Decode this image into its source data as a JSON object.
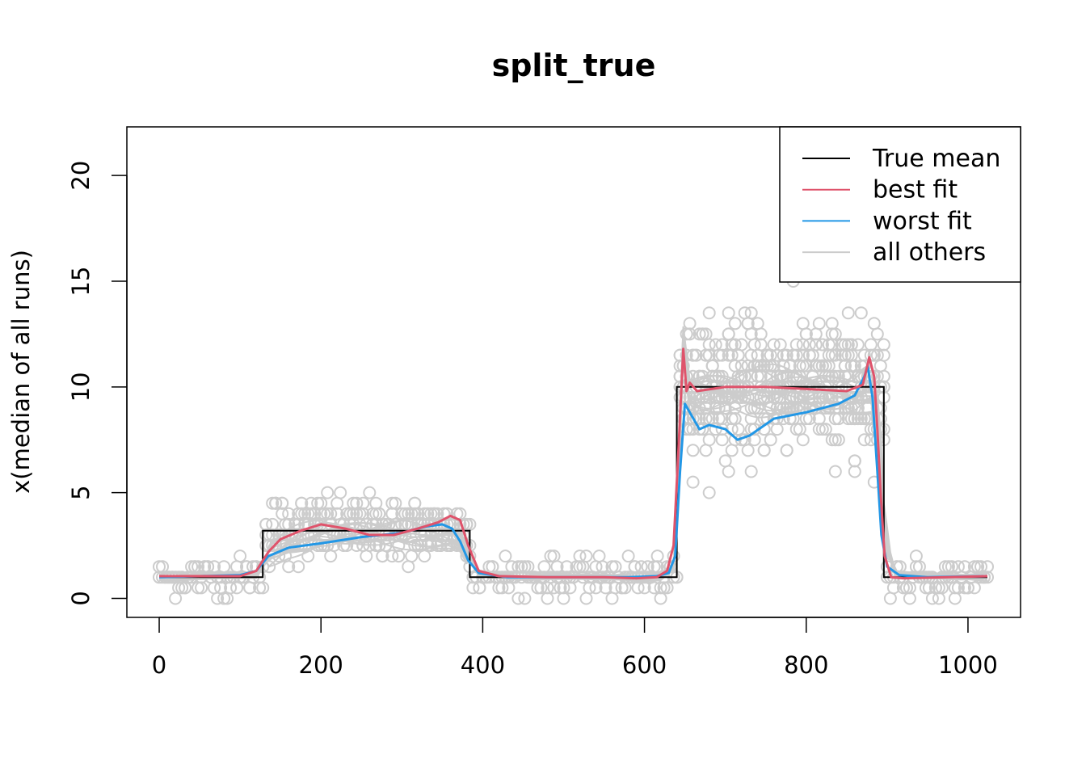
{
  "chart_data": {
    "type": "line",
    "title": "split_true",
    "xlabel": "",
    "ylabel": "x(median of all runs)",
    "xlim": [
      -40,
      1065
    ],
    "ylim": [
      -0.9,
      22.3
    ],
    "x_ticks": [
      0,
      200,
      400,
      600,
      800,
      1000
    ],
    "y_ticks": [
      0,
      5,
      10,
      15,
      20
    ],
    "grid": false,
    "legend_position": "top-right",
    "legend": [
      {
        "label": "True mean",
        "color": "#000000"
      },
      {
        "label": "best fit",
        "color": "#DF536B"
      },
      {
        "label": "worst fit",
        "color": "#2297E6"
      },
      {
        "label": "all others",
        "color": "#CCCCCC"
      }
    ],
    "series": [
      {
        "name": "True mean",
        "color": "#000000",
        "step": true,
        "x": [
          0,
          128,
          128,
          384,
          384,
          640,
          640,
          896,
          896,
          1024
        ],
        "y": [
          1,
          1,
          3.2,
          3.2,
          1,
          1,
          10,
          10,
          1,
          1
        ]
      },
      {
        "name": "best fit",
        "color": "#DF536B",
        "x": [
          0,
          50,
          100,
          120,
          135,
          150,
          175,
          200,
          230,
          260,
          290,
          320,
          345,
          360,
          372,
          382,
          395,
          420,
          480,
          550,
          590,
          615,
          628,
          636,
          642,
          648,
          652,
          656,
          665,
          700,
          750,
          800,
          850,
          870,
          878,
          884,
          888,
          892,
          897,
          905,
          920,
          1024
        ],
        "y": [
          1.05,
          1.05,
          1.05,
          1.3,
          2.2,
          2.8,
          3.2,
          3.5,
          3.3,
          3.0,
          3.0,
          3.3,
          3.6,
          3.9,
          3.7,
          2.5,
          1.3,
          1.05,
          1.0,
          1.0,
          0.95,
          1.0,
          1.3,
          2.5,
          7.0,
          11.8,
          9.8,
          10.2,
          9.8,
          10.0,
          10.0,
          9.9,
          9.8,
          10.1,
          11.4,
          10.5,
          8.0,
          5.0,
          2.0,
          1.0,
          0.95,
          1.05
        ]
      },
      {
        "name": "worst fit",
        "color": "#2297E6",
        "x": [
          0,
          50,
          100,
          120,
          135,
          160,
          200,
          250,
          300,
          330,
          350,
          362,
          372,
          382,
          395,
          430,
          500,
          580,
          615,
          630,
          638,
          644,
          650,
          656,
          668,
          680,
          700,
          715,
          730,
          760,
          800,
          840,
          860,
          872,
          876,
          882,
          888,
          893,
          900,
          915,
          950,
          1024
        ],
        "y": [
          1.0,
          1.05,
          1.1,
          1.3,
          2.0,
          2.4,
          2.6,
          2.9,
          3.1,
          3.4,
          3.5,
          3.3,
          2.7,
          1.8,
          1.2,
          1.0,
          1.0,
          1.0,
          1.05,
          1.2,
          2.0,
          6.0,
          9.2,
          8.8,
          8.0,
          8.2,
          8.0,
          7.5,
          7.7,
          8.5,
          8.8,
          9.2,
          9.6,
          10.5,
          11.0,
          9.5,
          6.0,
          3.0,
          1.5,
          1.1,
          1.0,
          1.05
        ]
      },
      {
        "name": "all others",
        "color": "#CCCCCC",
        "x": [
          0,
          120,
          135,
          160,
          200,
          260,
          320,
          370,
          382,
          395,
          430,
          620,
          636,
          642,
          648,
          656,
          700,
          800,
          860,
          880,
          890,
          897,
          910,
          1024
        ],
        "y": [
          1.0,
          1.1,
          2.0,
          2.6,
          3.0,
          3.1,
          3.0,
          2.8,
          2.0,
          1.2,
          1.05,
          1.0,
          1.5,
          6.0,
          12.0,
          9.6,
          9.8,
          9.7,
          9.7,
          10.0,
          8.0,
          3.0,
          1.1,
          1.0
        ]
      }
    ],
    "points_color": "#CCCCCC"
  }
}
